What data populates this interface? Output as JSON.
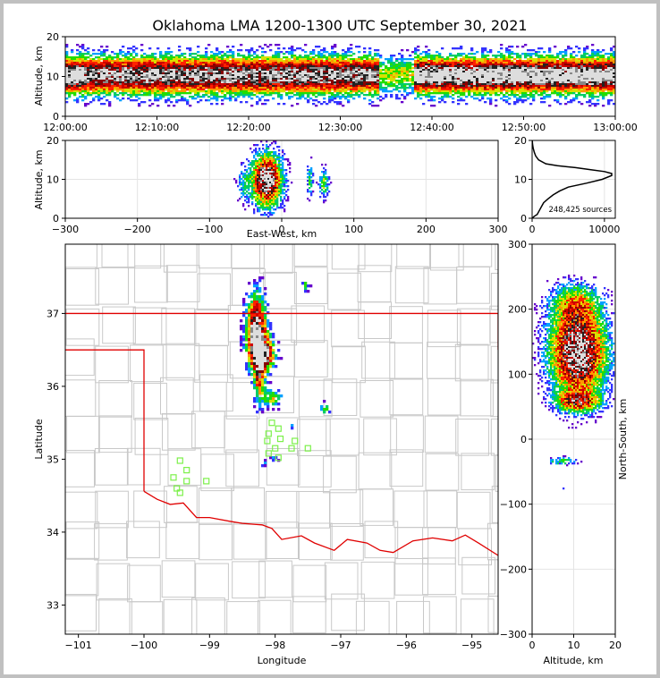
{
  "chart_data": [
    {
      "id": "time_height",
      "type": "heatmap",
      "title": "Oklahoma LMA 1200-1300 UTC September 30, 2021",
      "xlabel": "",
      "ylabel": "Altitude, km",
      "x_tick_labels": [
        "12:00:00",
        "12:10:00",
        "12:20:00",
        "12:30:00",
        "12:40:00",
        "12:50:00",
        "13:00:00"
      ],
      "xlim_minutes": [
        0,
        60
      ],
      "y_ticks": [
        0,
        10,
        20
      ],
      "ylim": [
        0,
        20
      ],
      "density_center_km": 10.5,
      "density_spread_km": 3.2,
      "peak_band_minutes": [
        [
          38,
          60
        ],
        [
          0,
          2
        ]
      ],
      "sparse_gap_minutes": [
        34,
        38
      ]
    },
    {
      "id": "east_west_altitude",
      "type": "heatmap",
      "xlabel": "East-West, km",
      "ylabel": "Altitude, km",
      "x_ticks": [
        -300,
        -200,
        -100,
        0,
        100,
        200,
        300
      ],
      "xlim": [
        -300,
        300
      ],
      "y_ticks": [
        0,
        10,
        20
      ],
      "ylim": [
        0,
        20
      ],
      "clusters": [
        {
          "x": -22,
          "alt": 10,
          "dx": 14,
          "dalt": 4.5,
          "weight": 1.0
        },
        {
          "x": 38,
          "alt": 10,
          "dx": 3,
          "dalt": 3,
          "weight": 0.3
        },
        {
          "x": 57,
          "alt": 9,
          "dx": 5,
          "dalt": 2.5,
          "weight": 0.35
        },
        {
          "x": -55,
          "alt": 9,
          "dx": 6,
          "dalt": 3,
          "weight": 0.2
        }
      ]
    },
    {
      "id": "altitude_histogram",
      "type": "line",
      "annotation": "248,425 sources",
      "x_ticks": [
        0,
        10000
      ],
      "xlim": [
        0,
        11500
      ],
      "y_ticks": [
        0,
        10,
        20
      ],
      "ylim": [
        0,
        20
      ],
      "profile": [
        [
          0,
          0
        ],
        [
          0.5,
          300
        ],
        [
          1,
          700
        ],
        [
          2,
          1000
        ],
        [
          3,
          1300
        ],
        [
          4,
          1600
        ],
        [
          5,
          2200
        ],
        [
          6,
          2900
        ],
        [
          7,
          3800
        ],
        [
          8,
          5000
        ],
        [
          9,
          7500
        ],
        [
          10,
          9700
        ],
        [
          11,
          11000
        ],
        [
          11.5,
          11000
        ],
        [
          12,
          10000
        ],
        [
          12.5,
          8000
        ],
        [
          13,
          6000
        ],
        [
          13.5,
          3500
        ],
        [
          14,
          1900
        ],
        [
          15,
          900
        ],
        [
          16,
          500
        ],
        [
          17,
          300
        ],
        [
          18,
          150
        ],
        [
          19,
          60
        ],
        [
          20,
          20
        ]
      ]
    },
    {
      "id": "plan_view",
      "type": "scatter",
      "xlabel": "Longitude",
      "ylabel": "Latitude",
      "x_ticks": [
        -101,
        -100,
        -99,
        -98,
        -97,
        -96,
        -95
      ],
      "xlim": [
        -101.2,
        -94.6
      ],
      "y_ticks": [
        33,
        34,
        35,
        36,
        37
      ],
      "ylim": [
        32.6,
        37.95
      ],
      "state_border_color": "#e00000",
      "county_color": "#c8c8c8",
      "station_color": "#7cf04a",
      "stations": [
        [
          -98.05,
          35.5
        ],
        [
          -97.95,
          35.42
        ],
        [
          -98.1,
          35.35
        ],
        [
          -97.92,
          35.28
        ],
        [
          -98.12,
          35.25
        ],
        [
          -97.7,
          35.25
        ],
        [
          -97.75,
          35.15
        ],
        [
          -97.5,
          35.15
        ],
        [
          -98.0,
          35.15
        ],
        [
          -98.1,
          35.08
        ],
        [
          -97.95,
          35.02
        ],
        [
          -99.45,
          34.98
        ],
        [
          -99.35,
          34.85
        ],
        [
          -99.55,
          34.75
        ],
        [
          -99.35,
          34.7
        ],
        [
          -99.05,
          34.7
        ],
        [
          -99.5,
          34.6
        ],
        [
          -99.45,
          34.54
        ]
      ],
      "clusters": [
        {
          "lon": -98.3,
          "lat": 36.8,
          "dlon": 0.1,
          "dlat": 0.3,
          "weight": 1.0
        },
        {
          "lon": -98.2,
          "lat": 36.45,
          "dlon": 0.12,
          "dlat": 0.15,
          "weight": 0.9
        },
        {
          "lon": -98.25,
          "lat": 36.1,
          "dlon": 0.06,
          "dlat": 0.22,
          "weight": 0.55
        },
        {
          "lon": -98.05,
          "lat": 35.85,
          "dlon": 0.1,
          "dlat": 0.08,
          "weight": 0.4
        },
        {
          "lon": -97.55,
          "lat": 37.4,
          "dlon": 0.04,
          "dlat": 0.06,
          "weight": 0.3
        },
        {
          "lon": -97.25,
          "lat": 35.7,
          "dlon": 0.05,
          "dlat": 0.06,
          "weight": 0.3
        },
        {
          "lon": -97.75,
          "lat": 35.5,
          "dlon": 0.03,
          "dlat": 0.06,
          "weight": 0.2
        },
        {
          "lon": -98.2,
          "lat": 34.97,
          "dlon": 0.05,
          "dlat": 0.03,
          "weight": 0.2
        },
        {
          "lon": -98.02,
          "lat": 35.03,
          "dlon": 0.04,
          "dlat": 0.03,
          "weight": 0.2
        }
      ]
    },
    {
      "id": "north_south_altitude",
      "type": "heatmap",
      "xlabel": "Altitude, km",
      "ylabel": "North-South, km",
      "x_ticks": [
        0,
        10,
        20
      ],
      "xlim": [
        0,
        20
      ],
      "y_ticks": [
        -300,
        -200,
        -100,
        0,
        100,
        200,
        300
      ],
      "ylim": [
        -300,
        300
      ],
      "clusters": [
        {
          "alt": 11,
          "ns": 135,
          "dalt": 4.5,
          "dns": 45,
          "weight": 1.0
        },
        {
          "alt": 11,
          "ns": 60,
          "dalt": 3.5,
          "dns": 10,
          "weight": 0.6
        },
        {
          "alt": 10,
          "ns": 210,
          "dalt": 4,
          "dns": 20,
          "weight": 0.35
        },
        {
          "alt": 7,
          "ns": -32,
          "dalt": 2.5,
          "dns": 4,
          "weight": 0.3
        },
        {
          "alt": 7,
          "ns": -75,
          "dalt": 0.6,
          "dns": 1,
          "weight": 0.1
        }
      ]
    }
  ]
}
